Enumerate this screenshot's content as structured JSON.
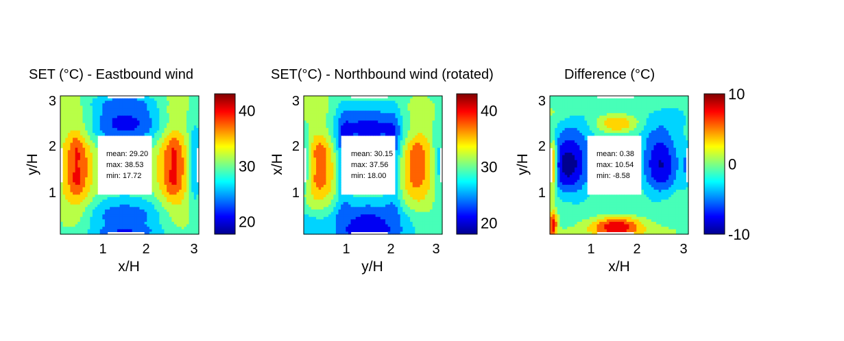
{
  "chart_data": [
    {
      "type": "heatmap",
      "title": "SET (°C) - Eastbound wind",
      "xlabel": "x/H",
      "ylabel": "y/H",
      "xticks": [
        "1",
        "2",
        "3"
      ],
      "yticks": [
        "1",
        "2",
        "3"
      ],
      "xlim": [
        0.15,
        3.15
      ],
      "ylim": [
        0.15,
        3.15
      ],
      "stats": [
        "mean: 29.20",
        "max: 38.53",
        "min: 17.72"
      ],
      "colorbar": {
        "ticks": [
          "20",
          "30",
          "40"
        ],
        "tick_values": [
          20,
          30,
          40
        ],
        "min": 17.72,
        "max": 43.0
      },
      "colormap": "jet",
      "field": {
        "mode": "east",
        "base": 29.5,
        "blobs": [
          [
            0.5,
            1.65,
            0.28,
            0.75,
            9.0
          ],
          [
            2.6,
            1.65,
            0.28,
            0.75,
            9.0
          ],
          [
            0.5,
            2.05,
            0.1,
            0.2,
            2.0
          ],
          [
            0.5,
            1.25,
            0.1,
            0.2,
            2.0
          ],
          [
            2.6,
            2.05,
            0.1,
            0.2,
            2.0
          ],
          [
            2.6,
            1.25,
            0.1,
            0.2,
            2.0
          ],
          [
            1.55,
            2.55,
            0.7,
            0.32,
            -8.5
          ],
          [
            1.55,
            0.55,
            0.7,
            0.28,
            -6.5
          ],
          [
            1.55,
            0.18,
            0.55,
            0.1,
            -5.0
          ],
          [
            1.55,
            3.0,
            0.55,
            0.12,
            -3.5
          ],
          [
            3.05,
            1.65,
            0.1,
            0.6,
            -7.0
          ],
          [
            0.25,
            1.65,
            0.1,
            0.3,
            -1.5
          ],
          [
            0.3,
            2.95,
            0.25,
            0.25,
            1.5
          ],
          [
            0.7,
            2.7,
            0.25,
            0.2,
            1.0
          ],
          [
            2.6,
            2.95,
            0.3,
            0.25,
            1.5
          ],
          [
            2.9,
            0.5,
            0.25,
            0.25,
            1.0
          ],
          [
            0.4,
            0.5,
            0.3,
            0.25,
            0.8
          ]
        ]
      }
    },
    {
      "type": "heatmap",
      "title": "SET(°C) - Northbound wind (rotated)",
      "xlabel": "y/H",
      "ylabel": "x/H",
      "xticks": [
        "1",
        "2",
        "3"
      ],
      "yticks": [
        "1",
        "2",
        "3"
      ],
      "xlim": [
        0.15,
        3.15
      ],
      "ylim": [
        0.15,
        3.15
      ],
      "stats": [
        "mean: 30.15",
        "max: 37.56",
        "min: 18.00"
      ],
      "colorbar": {
        "ticks": [
          "20",
          "30",
          "40"
        ],
        "tick_values": [
          20,
          30,
          40
        ],
        "min": 18.0,
        "max": 43.0
      },
      "colormap": "jet",
      "field": {
        "mode": "north",
        "base": 29.5,
        "blobs": [
          [
            0.5,
            1.7,
            0.3,
            0.7,
            7.5
          ],
          [
            2.6,
            1.7,
            0.3,
            0.7,
            7.5
          ],
          [
            0.5,
            2.0,
            0.12,
            0.15,
            2.0
          ],
          [
            0.5,
            1.3,
            0.12,
            0.15,
            1.5
          ],
          [
            2.6,
            2.0,
            0.12,
            0.15,
            2.0
          ],
          [
            2.6,
            1.3,
            0.12,
            0.15,
            1.5
          ],
          [
            1.55,
            2.45,
            0.6,
            0.35,
            -8.5
          ],
          [
            1.55,
            0.45,
            0.7,
            0.3,
            -8.0
          ],
          [
            1.55,
            0.18,
            0.5,
            0.1,
            -4.0
          ],
          [
            1.0,
            1.7,
            0.12,
            0.7,
            -6.0
          ],
          [
            2.1,
            1.7,
            0.12,
            0.7,
            -6.0
          ],
          [
            0.2,
            1.7,
            0.1,
            0.5,
            -5.0
          ],
          [
            3.05,
            1.7,
            0.08,
            0.5,
            -4.5
          ],
          [
            0.4,
            2.9,
            0.3,
            0.25,
            1.5
          ],
          [
            2.6,
            2.85,
            0.4,
            0.25,
            1.0
          ],
          [
            0.45,
            0.9,
            0.25,
            0.25,
            1.0
          ],
          [
            2.6,
            0.8,
            0.25,
            0.25,
            1.0
          ],
          [
            0.25,
            0.35,
            0.2,
            0.2,
            -3.0
          ]
        ]
      }
    },
    {
      "type": "heatmap",
      "title": "Difference (°C)",
      "xlabel": "x/H",
      "ylabel": "y/H",
      "xticks": [
        "1",
        "2",
        "3"
      ],
      "yticks": [
        "1",
        "2",
        "3"
      ],
      "xlim": [
        0.15,
        3.15
      ],
      "ylim": [
        0.15,
        3.15
      ],
      "stats": [
        "mean: 0.38",
        "max: 10.54",
        "min: -8.58"
      ],
      "colorbar": {
        "ticks": [
          "10",
          "0",
          "-10"
        ],
        "tick_values": [
          10,
          0,
          -10
        ],
        "min": -10.0,
        "max": 10.0
      },
      "colormap": "jet",
      "field": {
        "mode": "diff",
        "base": 0.0,
        "blobs": [
          [
            0.55,
            1.65,
            0.35,
            0.55,
            -10.0
          ],
          [
            2.55,
            1.65,
            0.3,
            0.55,
            -9.0
          ],
          [
            1.6,
            2.55,
            0.7,
            0.3,
            -3.5
          ],
          [
            1.6,
            0.55,
            0.65,
            0.25,
            -2.5
          ],
          [
            1.6,
            2.55,
            0.35,
            0.15,
            8.0
          ],
          [
            1.6,
            0.35,
            0.4,
            0.15,
            9.5
          ],
          [
            1.6,
            0.22,
            0.55,
            0.08,
            2.0
          ],
          [
            0.22,
            1.65,
            0.06,
            0.4,
            11.0
          ],
          [
            0.22,
            0.35,
            0.06,
            0.2,
            8.5
          ],
          [
            0.25,
            2.75,
            0.25,
            0.15,
            1.0
          ],
          [
            2.9,
            2.7,
            0.25,
            0.2,
            -2.0
          ],
          [
            3.1,
            1.65,
            0.08,
            0.4,
            -3.0
          ],
          [
            0.5,
            0.8,
            0.3,
            0.3,
            1.5
          ],
          [
            2.6,
            0.8,
            0.3,
            0.3,
            1.5
          ]
        ]
      }
    }
  ]
}
